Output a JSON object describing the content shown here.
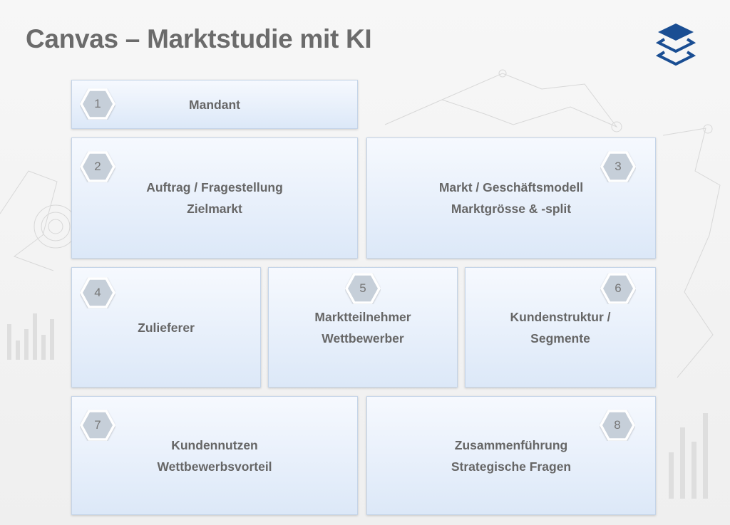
{
  "title": "Canvas – Marktstudie mit KI",
  "logo_icon": "layers-icon",
  "colors": {
    "title": "#6b6b6b",
    "box_text": "#666666",
    "badge_fill": "#c6cfd9",
    "logo": "#1a4e93"
  },
  "boxes": [
    {
      "number": "1",
      "lines": [
        "Mandant"
      ]
    },
    {
      "number": "2",
      "lines": [
        "Auftrag / Fragestellung",
        "Zielmarkt"
      ]
    },
    {
      "number": "3",
      "lines": [
        "Markt / Geschäftsmodell",
        "Marktgrösse & -split"
      ]
    },
    {
      "number": "4",
      "lines": [
        "Zulieferer"
      ]
    },
    {
      "number": "5",
      "lines": [
        "Marktteilnehmer",
        "Wettbewerber"
      ]
    },
    {
      "number": "6",
      "lines": [
        "Kundenstruktur /",
        "Segmente"
      ]
    },
    {
      "number": "7",
      "lines": [
        "Kundennutzen",
        "Wettbewerbsvorteil"
      ]
    },
    {
      "number": "8",
      "lines": [
        "Zusammenführung",
        "Strategische Fragen"
      ]
    }
  ]
}
